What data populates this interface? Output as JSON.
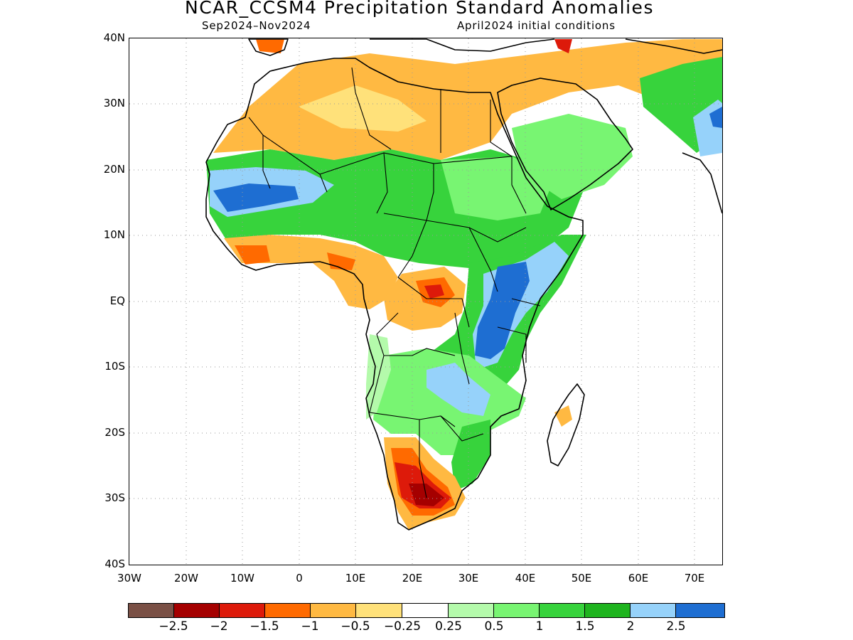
{
  "header": {
    "title": "NCAR_CCSM4 Precipitation Standard Anomalies",
    "subtitle_left": "Sep2024–Nov2024",
    "subtitle_right": "April2024 initial conditions"
  },
  "axes": {
    "y_labels": [
      "40N",
      "30N",
      "20N",
      "10N",
      "EQ",
      "10S",
      "20S",
      "30S",
      "40S"
    ],
    "x_labels": [
      "30W",
      "20W",
      "10W",
      "0",
      "10E",
      "20E",
      "30E",
      "40E",
      "50E",
      "60E",
      "70E"
    ],
    "lat_range": [
      -40,
      40
    ],
    "lon_range": [
      -30,
      75
    ]
  },
  "colorbar": {
    "colors": [
      "#7a5045",
      "#a50000",
      "#dd1a0a",
      "#ff6a00",
      "#ffb942",
      "#ffe17a",
      "#ffffff",
      "#b4faab",
      "#78f572",
      "#37d33c",
      "#1eb41e",
      "#96d2fa",
      "#1e6ed2"
    ],
    "labels": [
      "−2.5",
      "−2",
      "−1.5",
      "−1",
      "−0.5",
      "−0.25",
      "0.25",
      "0.5",
      "1",
      "1.5",
      "2",
      "2.5"
    ]
  },
  "map_colors": {
    "land_outline": "#000000",
    "grid": "#9a9a9a"
  }
}
